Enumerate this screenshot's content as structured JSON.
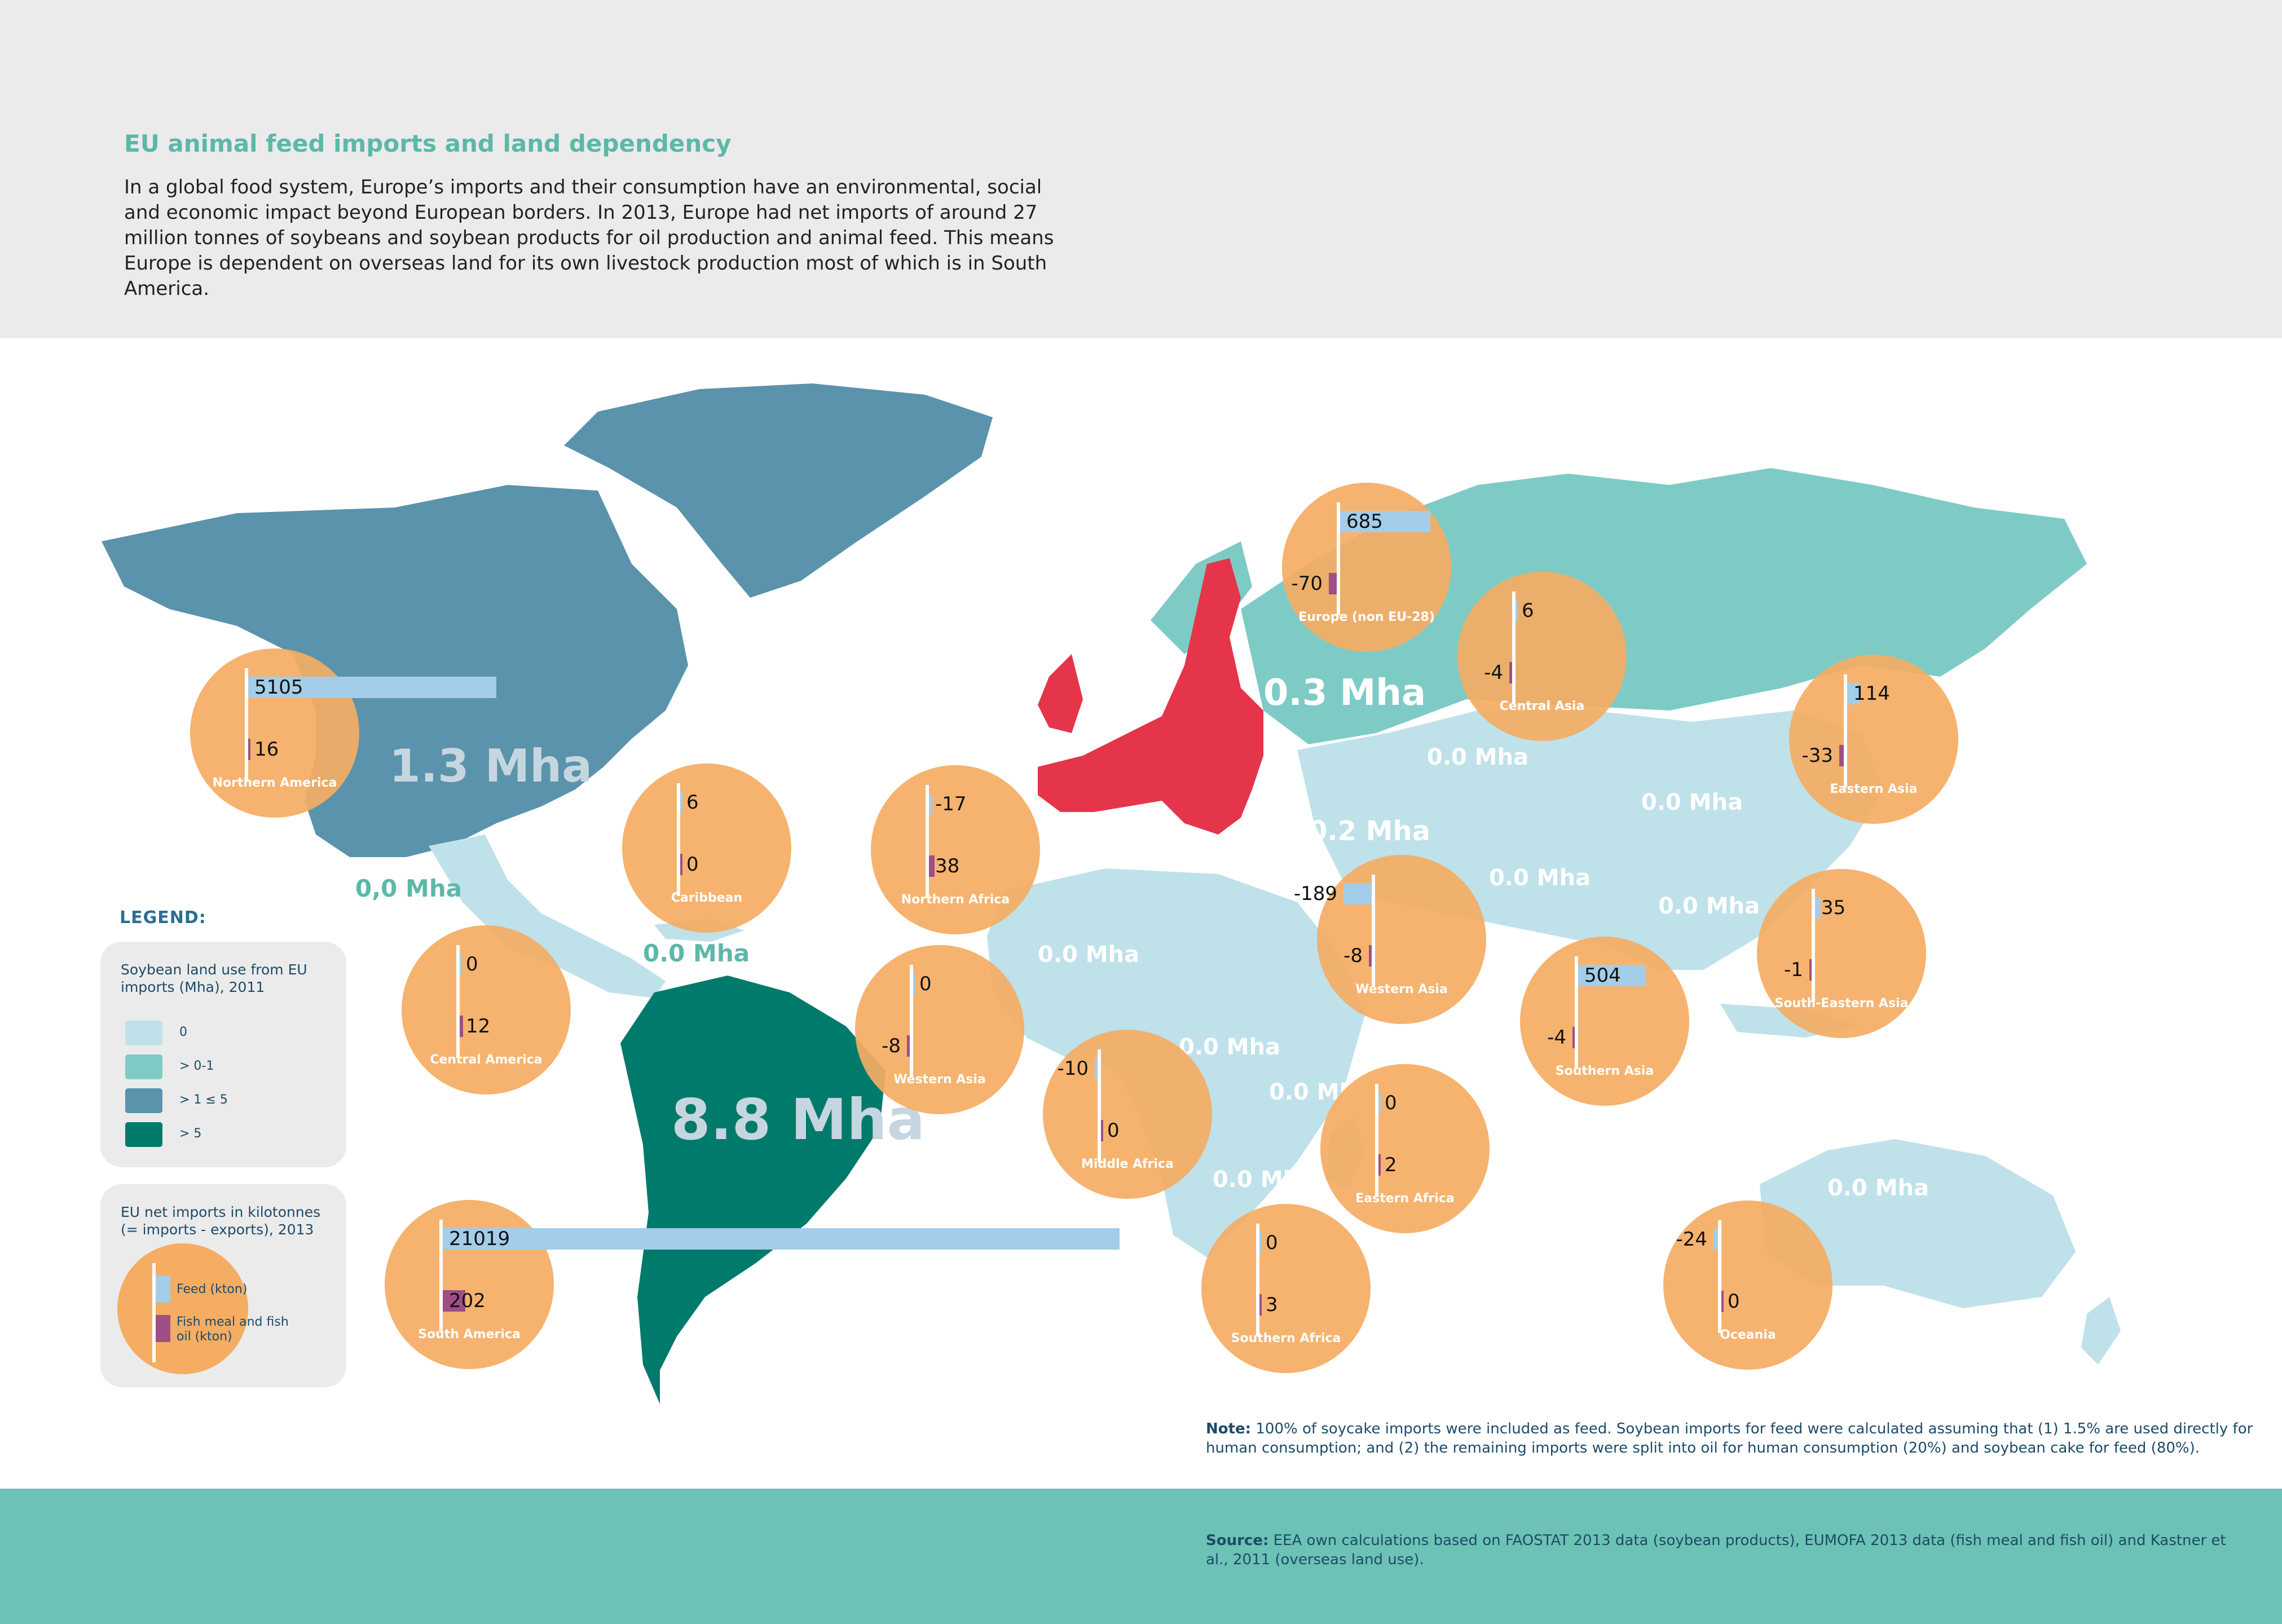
{
  "title": "EU animal feed imports and land dependency",
  "intro": "In a global food system, Europe’s imports and their consumption have an environmental, social and economic impact beyond European borders. In 2013, Europe had net imports of around 27 million tonnes of soybeans and soybean products for oil production and animal feed. This means Europe is dependent on overseas land for its own livestock production most of which is in South America.",
  "colors": {
    "land_0": "#bfe1ea",
    "land_0_1": "#7ecbc6",
    "land_1_5": "#5a93ab",
    "land_gt5": "#007a6b",
    "eu28": "#e4354a",
    "hub": "#f4ad63",
    "feed_bar": "#a3cde8",
    "fish_bar": "#9d4f86"
  },
  "land_labels": [
    {
      "name": "north-america",
      "text": "1.3 Mha"
    },
    {
      "name": "south-america",
      "text": "8.8 Mha"
    },
    {
      "name": "russia",
      "text": "0.3 Mha"
    },
    {
      "name": "mexico",
      "text": "0,0 Mha"
    },
    {
      "name": "central-america",
      "text": "0.0 Mha"
    },
    {
      "name": "central-asia",
      "text": "0.0 Mha"
    },
    {
      "name": "china",
      "text": "0.0 Mha"
    },
    {
      "name": "middle-east",
      "text": "0.2 Mha"
    },
    {
      "name": "south-asia",
      "text": "0.0 Mha"
    },
    {
      "name": "southeast-asia",
      "text": "0.0 Mha"
    },
    {
      "name": "north-africa",
      "text": "0.0 Mha"
    },
    {
      "name": "west-africa",
      "text": "0.0 Mha"
    },
    {
      "name": "central-africa",
      "text": "0.0 Mha"
    },
    {
      "name": "east-africa",
      "text": "0.0 Mha"
    },
    {
      "name": "southern-africa",
      "text": "0.0 Mha"
    },
    {
      "name": "australia",
      "text": "0.0 Mha"
    }
  ],
  "regions": [
    {
      "name": "Northern America",
      "feed": "5105",
      "fish": "16"
    },
    {
      "name": "Caribbean",
      "feed": "6",
      "fish": "0"
    },
    {
      "name": "Central America",
      "feed": "0",
      "fish": "12"
    },
    {
      "name": "South America",
      "feed": "21019",
      "fish": "202"
    },
    {
      "name": "Northern Africa",
      "feed": "-17",
      "fish": "38"
    },
    {
      "name": "Western Asia",
      "feed": "0",
      "fish": "-8"
    },
    {
      "name": "Middle Africa",
      "feed": "-10",
      "fish": "0"
    },
    {
      "name": "Southern Africa",
      "feed": "0",
      "fish": "3"
    },
    {
      "name": "Europe (non EU-28)",
      "feed": "685",
      "fish": "-70"
    },
    {
      "name": "Central Asia",
      "feed": "6",
      "fish": "-4"
    },
    {
      "name": "Western Asia",
      "feed": "-189",
      "fish": "-8"
    },
    {
      "name": "Eastern Africa",
      "feed": "0",
      "fish": "2"
    },
    {
      "name": "Southern Asia",
      "feed": "504",
      "fish": "-4"
    },
    {
      "name": "Eastern Asia",
      "feed": "114",
      "fish": "-33"
    },
    {
      "name": "South-Eastern Asia",
      "feed": "35",
      "fish": "-1"
    },
    {
      "name": "Oceania",
      "feed": "-24",
      "fish": "0"
    }
  ],
  "legend": {
    "title": "LEGEND:",
    "land_heading": "Soybean land use from EU imports (Mha), 2011",
    "land_classes": [
      "0",
      "> 0-1",
      "> 1 ≤ 5",
      "> 5"
    ],
    "imports_heading": "EU net imports in kilotonnes (= imports - exports), 2013",
    "feed_label": "Feed (kton)",
    "fish_label": "Fish meal and fish oil (kton)"
  },
  "note": {
    "lead": "Note:",
    "text": "100% of soycake imports were included as feed. Soybean imports for feed were calculated assuming that (1) 1.5% are used directly for human consumption; and (2) the remaining imports were split into oil for human consumption (20%) and soybean cake for feed (80%)."
  },
  "source": {
    "lead": "Source:",
    "text": "EEA own calculations based on FAOSTAT 2013 data (soybean products), EUMOFA 2013 data (fish meal and fish oil) and Kastner et al., 2011 (overseas land use)."
  }
}
